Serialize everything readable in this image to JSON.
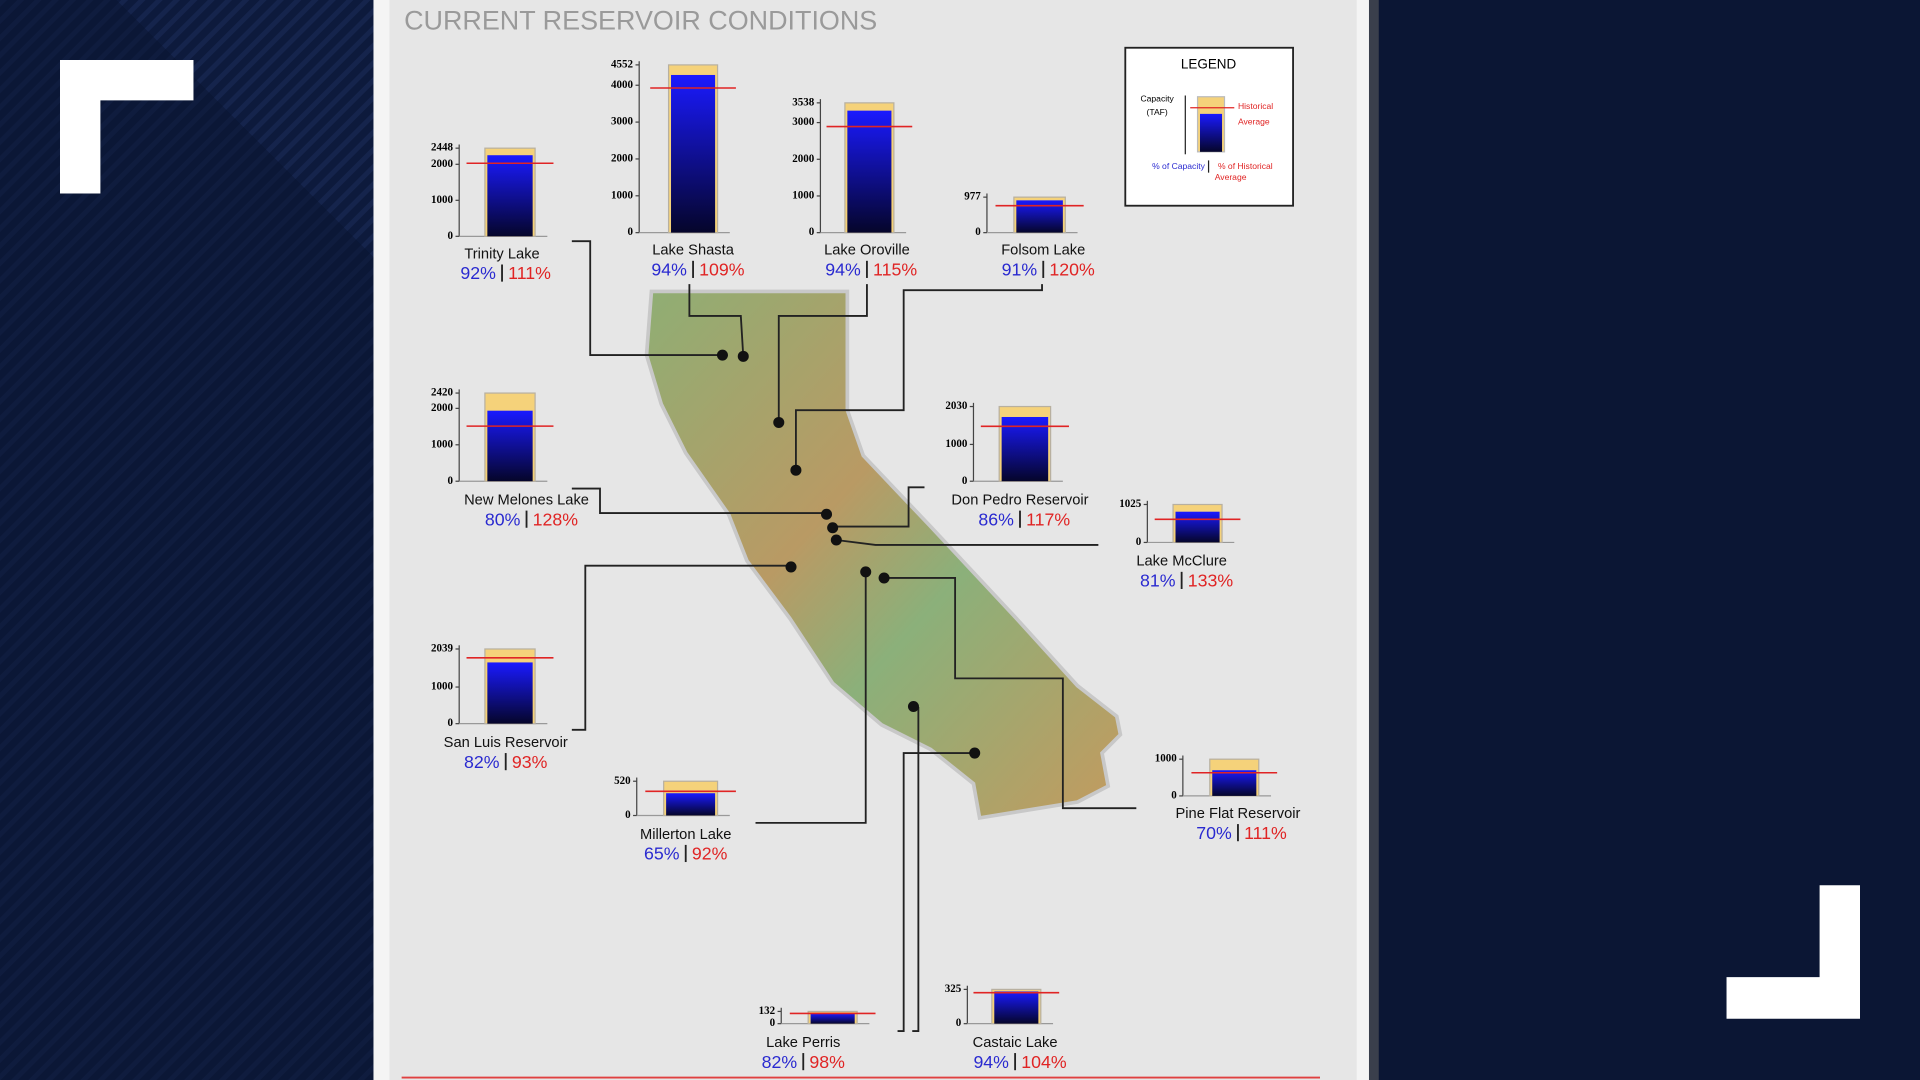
{
  "title": "CURRENT RESERVOIR CONDITIONS",
  "legend": {
    "title": "LEGEND",
    "capacity": [
      "Capacity",
      "(TAF)"
    ],
    "historical": [
      "Historical",
      "Average"
    ],
    "pct_capacity": "% of Capacity",
    "pct_historical": [
      "% of Historical",
      "Average"
    ]
  },
  "reservoirs": [
    {
      "name": "Trinity Lake",
      "yticks": [
        0,
        1000,
        2000,
        2448
      ],
      "pct_capacity": {
        "value": 92,
        "label": "92%"
      },
      "pct_historical": {
        "value": 111,
        "label": "111%"
      }
    },
    {
      "name": "Lake Shasta",
      "yticks": [
        0,
        1000,
        2000,
        3000,
        4000,
        4552
      ],
      "pct_capacity": {
        "value": 94,
        "label": "94%"
      },
      "pct_historical": {
        "value": 109,
        "label": "109%"
      }
    },
    {
      "name": "Lake Oroville",
      "yticks": [
        0,
        1000,
        2000,
        3000,
        3538
      ],
      "pct_capacity": {
        "value": 94,
        "label": "94%"
      },
      "pct_historical": {
        "value": 115,
        "label": "115%"
      }
    },
    {
      "name": "Folsom Lake",
      "yticks": [
        0,
        977
      ],
      "pct_capacity": {
        "value": 91,
        "label": "91%"
      },
      "pct_historical": {
        "value": 120,
        "label": "120%"
      }
    },
    {
      "name": "New Melones Lake",
      "yticks": [
        0,
        1000,
        2000,
        2420
      ],
      "pct_capacity": {
        "value": 80,
        "label": "80%"
      },
      "pct_historical": {
        "value": 128,
        "label": "128%"
      }
    },
    {
      "name": "Don Pedro Reservoir",
      "yticks": [
        0,
        1000,
        2030
      ],
      "pct_capacity": {
        "value": 86,
        "label": "86%"
      },
      "pct_historical": {
        "value": 117,
        "label": "117%"
      }
    },
    {
      "name": "Lake McClure",
      "yticks": [
        0,
        1025
      ],
      "pct_capacity": {
        "value": 81,
        "label": "81%"
      },
      "pct_historical": {
        "value": 133,
        "label": "133%"
      }
    },
    {
      "name": "San Luis Reservoir",
      "yticks": [
        0,
        1000,
        2039
      ],
      "pct_capacity": {
        "value": 82,
        "label": "82%"
      },
      "pct_historical": {
        "value": 93,
        "label": "93%"
      }
    },
    {
      "name": "Millerton Lake",
      "yticks": [
        0,
        520
      ],
      "pct_capacity": {
        "value": 65,
        "label": "65%"
      },
      "pct_historical": {
        "value": 92,
        "label": "92%"
      }
    },
    {
      "name": "Pine Flat Reservoir",
      "yticks": [
        0,
        1000
      ],
      "pct_capacity": {
        "value": 70,
        "label": "70%"
      },
      "pct_historical": {
        "value": 111,
        "label": "111%"
      }
    },
    {
      "name": "Lake Perris",
      "yticks": [
        0,
        132
      ],
      "pct_capacity": {
        "value": 82,
        "label": "82%"
      },
      "pct_historical": {
        "value": 98,
        "label": "98%"
      }
    },
    {
      "name": "Castaic Lake",
      "yticks": [
        0,
        325
      ],
      "pct_capacity": {
        "value": 94,
        "label": "94%"
      },
      "pct_historical": {
        "value": 104,
        "label": "104%"
      }
    }
  ]
}
